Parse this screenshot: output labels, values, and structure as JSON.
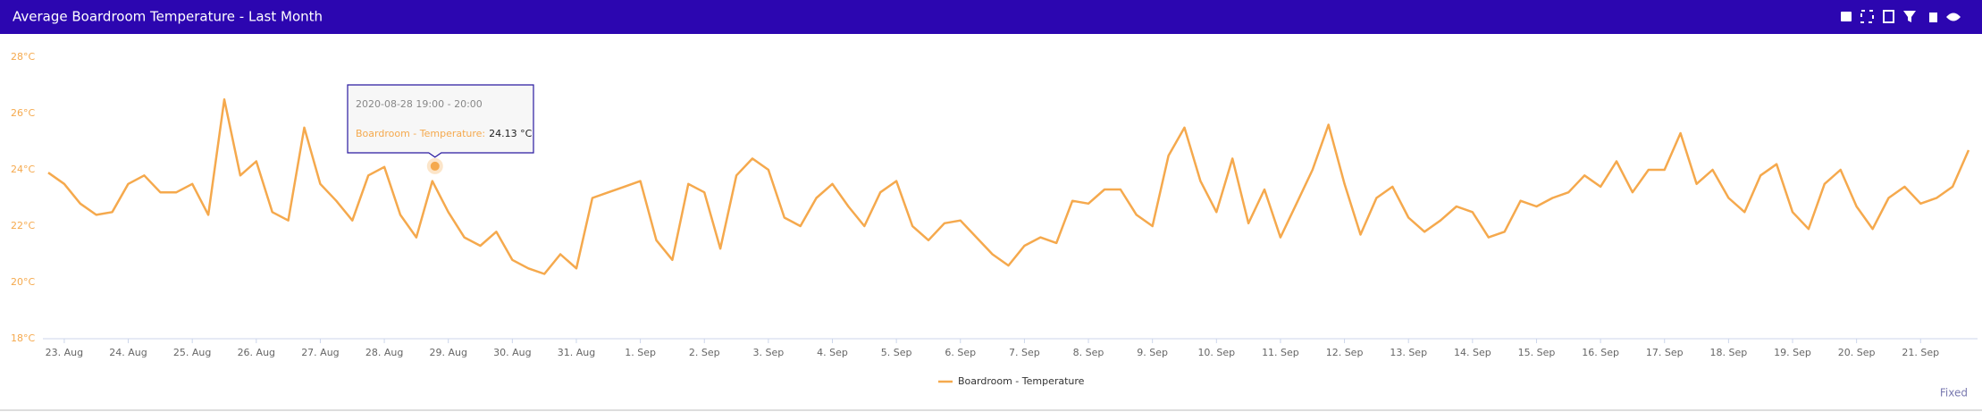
{
  "chart_data": {
    "type": "line",
    "title": "Average Boardroom Temperature - Last Month",
    "x": [
      "2020-08-22T18:00",
      "2020-08-23T00:00",
      "2020-08-23T06:00",
      "2020-08-23T12:00",
      "2020-08-23T18:00",
      "2020-08-24T00:00",
      "2020-08-24T06:00",
      "2020-08-24T12:00",
      "2020-08-24T18:00",
      "2020-08-25T00:00",
      "2020-08-25T06:00",
      "2020-08-25T12:00",
      "2020-08-25T18:00",
      "2020-08-26T00:00",
      "2020-08-26T06:00",
      "2020-08-26T12:00",
      "2020-08-26T18:00",
      "2020-08-27T00:00",
      "2020-08-27T06:00",
      "2020-08-27T12:00",
      "2020-08-27T18:00",
      "2020-08-28T00:00",
      "2020-08-28T06:00",
      "2020-08-28T12:00",
      "2020-08-28T18:00",
      "2020-08-29T00:00",
      "2020-08-29T06:00",
      "2020-08-29T12:00",
      "2020-08-29T18:00",
      "2020-08-30T00:00",
      "2020-08-30T06:00",
      "2020-08-30T12:00",
      "2020-08-30T18:00",
      "2020-08-31T00:00",
      "2020-08-31T06:00",
      "2020-08-31T12:00",
      "2020-08-31T18:00",
      "2020-09-01T00:00",
      "2020-09-01T06:00",
      "2020-09-01T12:00",
      "2020-09-01T18:00",
      "2020-09-02T00:00",
      "2020-09-02T06:00",
      "2020-09-02T12:00",
      "2020-09-02T18:00",
      "2020-09-03T00:00",
      "2020-09-03T06:00",
      "2020-09-03T12:00",
      "2020-09-03T18:00",
      "2020-09-04T00:00",
      "2020-09-04T06:00",
      "2020-09-04T12:00",
      "2020-09-04T18:00",
      "2020-09-05T00:00",
      "2020-09-05T06:00",
      "2020-09-05T12:00",
      "2020-09-05T18:00",
      "2020-09-06T00:00",
      "2020-09-06T06:00",
      "2020-09-06T12:00",
      "2020-09-06T18:00",
      "2020-09-07T00:00",
      "2020-09-07T06:00",
      "2020-09-07T12:00",
      "2020-09-07T18:00",
      "2020-09-08T00:00",
      "2020-09-08T06:00",
      "2020-09-08T12:00",
      "2020-09-08T18:00",
      "2020-09-09T00:00",
      "2020-09-09T06:00",
      "2020-09-09T12:00",
      "2020-09-09T18:00",
      "2020-09-10T00:00",
      "2020-09-10T06:00",
      "2020-09-10T12:00",
      "2020-09-10T18:00",
      "2020-09-11T00:00",
      "2020-09-11T06:00",
      "2020-09-11T12:00",
      "2020-09-11T18:00",
      "2020-09-12T00:00",
      "2020-09-12T06:00",
      "2020-09-12T12:00",
      "2020-09-12T18:00",
      "2020-09-13T00:00",
      "2020-09-13T06:00",
      "2020-09-13T12:00",
      "2020-09-13T18:00",
      "2020-09-14T00:00",
      "2020-09-14T06:00",
      "2020-09-14T12:00",
      "2020-09-14T18:00",
      "2020-09-15T00:00",
      "2020-09-15T06:00",
      "2020-09-15T12:00",
      "2020-09-15T18:00",
      "2020-09-16T00:00",
      "2020-09-16T06:00",
      "2020-09-16T12:00",
      "2020-09-16T18:00",
      "2020-09-17T00:00",
      "2020-09-17T06:00",
      "2020-09-17T12:00",
      "2020-09-17T18:00",
      "2020-09-18T00:00",
      "2020-09-18T06:00",
      "2020-09-18T12:00",
      "2020-09-18T18:00",
      "2020-09-19T00:00",
      "2020-09-19T06:00",
      "2020-09-19T12:00",
      "2020-09-19T18:00",
      "2020-09-20T00:00",
      "2020-09-20T06:00",
      "2020-09-20T12:00",
      "2020-09-20T18:00",
      "2020-09-21T00:00",
      "2020-09-21T06:00",
      "2020-09-21T12:00",
      "2020-09-21T18:00"
    ],
    "series": [
      {
        "name": "Boardroom - Temperature",
        "color": "#f5a94d",
        "values": [
          23.9,
          23.5,
          22.8,
          22.4,
          22.5,
          23.5,
          23.8,
          23.2,
          23.2,
          23.5,
          22.4,
          26.5,
          23.8,
          24.3,
          22.5,
          22.2,
          25.5,
          23.5,
          22.9,
          22.2,
          23.8,
          24.1,
          22.4,
          21.6,
          23.6,
          22.5,
          21.6,
          21.3,
          21.8,
          20.8,
          20.5,
          20.3,
          21.0,
          20.5,
          23.0,
          23.2,
          23.4,
          23.6,
          21.5,
          20.8,
          23.5,
          23.2,
          21.2,
          23.8,
          24.4,
          24.0,
          22.3,
          22.0,
          23.0,
          23.5,
          22.7,
          22.0,
          23.2,
          23.6,
          22.0,
          21.5,
          22.1,
          22.2,
          21.6,
          21.0,
          20.6,
          21.3,
          21.6,
          21.4,
          22.9,
          22.8,
          23.3,
          23.3,
          22.4,
          22.0,
          24.5,
          25.5,
          23.6,
          22.5,
          24.4,
          22.1,
          23.3,
          21.6,
          22.8,
          24.0,
          25.6,
          23.5,
          21.7,
          23.0,
          23.4,
          22.3,
          21.8,
          22.2,
          22.7,
          22.5,
          21.6,
          21.8,
          22.9,
          22.7,
          23.0,
          23.2,
          23.8,
          23.4,
          24.3,
          23.2,
          24.0,
          24.0,
          25.3,
          23.5,
          24.0,
          23.0,
          22.5,
          23.8,
          24.2,
          22.5,
          21.9,
          23.5,
          24.0,
          22.7,
          21.9,
          23.0,
          23.4,
          22.8,
          23.0,
          23.4,
          24.7
        ]
      }
    ],
    "xlim": [
      "2020-08-22T18:00",
      "2020-09-21T18:00"
    ],
    "xticks": [
      {
        "value": "2020-08-23T00:00",
        "label": "23. Aug"
      },
      {
        "value": "2020-08-24T00:00",
        "label": "24. Aug"
      },
      {
        "value": "2020-08-25T00:00",
        "label": "25. Aug"
      },
      {
        "value": "2020-08-26T00:00",
        "label": "26. Aug"
      },
      {
        "value": "2020-08-27T00:00",
        "label": "27. Aug"
      },
      {
        "value": "2020-08-28T00:00",
        "label": "28. Aug"
      },
      {
        "value": "2020-08-29T00:00",
        "label": "29. Aug"
      },
      {
        "value": "2020-08-30T00:00",
        "label": "30. Aug"
      },
      {
        "value": "2020-08-31T00:00",
        "label": "31. Aug"
      },
      {
        "value": "2020-09-01T00:00",
        "label": "1. Sep"
      },
      {
        "value": "2020-09-02T00:00",
        "label": "2. Sep"
      },
      {
        "value": "2020-09-03T00:00",
        "label": "3. Sep"
      },
      {
        "value": "2020-09-04T00:00",
        "label": "4. Sep"
      },
      {
        "value": "2020-09-05T00:00",
        "label": "5. Sep"
      },
      {
        "value": "2020-09-06T00:00",
        "label": "6. Sep"
      },
      {
        "value": "2020-09-07T00:00",
        "label": "7. Sep"
      },
      {
        "value": "2020-09-08T00:00",
        "label": "8. Sep"
      },
      {
        "value": "2020-09-09T00:00",
        "label": "9. Sep"
      },
      {
        "value": "2020-09-10T00:00",
        "label": "10. Sep"
      },
      {
        "value": "2020-09-11T00:00",
        "label": "11. Sep"
      },
      {
        "value": "2020-09-12T00:00",
        "label": "12. Sep"
      },
      {
        "value": "2020-09-13T00:00",
        "label": "13. Sep"
      },
      {
        "value": "2020-09-14T00:00",
        "label": "14. Sep"
      },
      {
        "value": "2020-09-15T00:00",
        "label": "15. Sep"
      },
      {
        "value": "2020-09-16T00:00",
        "label": "16. Sep"
      },
      {
        "value": "2020-09-17T00:00",
        "label": "17. Sep"
      },
      {
        "value": "2020-09-18T00:00",
        "label": "18. Sep"
      },
      {
        "value": "2020-09-19T00:00",
        "label": "19. Sep"
      },
      {
        "value": "2020-09-20T00:00",
        "label": "20. Sep"
      },
      {
        "value": "2020-09-21T00:00",
        "label": "21. Sep"
      }
    ],
    "ylim": [
      18,
      28
    ],
    "yticks": [
      {
        "value": 18,
        "label": "18°C"
      },
      {
        "value": 20,
        "label": "20°C"
      },
      {
        "value": 22,
        "label": "22°C"
      },
      {
        "value": 24,
        "label": "24°C"
      },
      {
        "value": 26,
        "label": "26°C"
      },
      {
        "value": 28,
        "label": "28°C"
      }
    ],
    "grid": false,
    "tooltip": {
      "time": "2020-08-28 19:00 - 20:00",
      "x": "2020-08-28T19:00",
      "label": "Boardroom - Temperature:",
      "value": 24.13,
      "value_label": "24.13 °C"
    },
    "footer": "Fixed"
  }
}
